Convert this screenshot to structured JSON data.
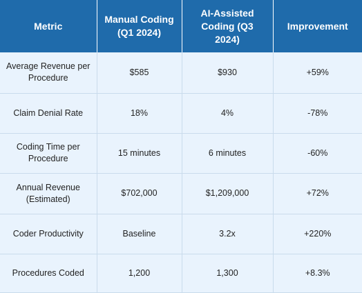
{
  "table": {
    "headers": [
      "Metric",
      "Manual Coding (Q1 2024)",
      "AI-Assisted Coding (Q3 2024)",
      "Improvement"
    ],
    "rows": [
      [
        "Average Revenue per Procedure",
        "$585",
        "$930",
        "+59%"
      ],
      [
        "Claim Denial Rate",
        "18%",
        "4%",
        "-78%"
      ],
      [
        "Coding Time per Procedure",
        "15 minutes",
        "6 minutes",
        "-60%"
      ],
      [
        "Annual Revenue (Estimated)",
        "$702,000",
        "$1,209,000",
        "+72%"
      ],
      [
        "Coder Productivity",
        "Baseline",
        "3.2x",
        "+220%"
      ],
      [
        "Procedures Coded",
        "1,200",
        "1,300",
        "+8.3%"
      ]
    ]
  },
  "colors": {
    "header_bg": "#1f6bab",
    "header_text": "#ffffff",
    "row_bg": "#e9f3fd",
    "border": "#c9dbec"
  }
}
